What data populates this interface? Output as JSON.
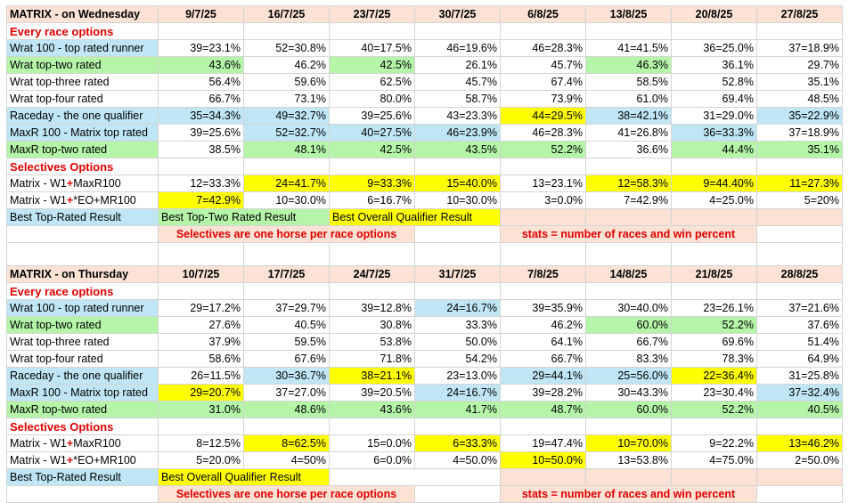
{
  "sections": [
    {
      "title": "MATRIX - on Wednesday",
      "dates": [
        "9/7/25",
        "16/7/25",
        "23/7/25",
        "30/7/25",
        "6/8/25",
        "13/8/25",
        "20/8/25",
        "27/8/25"
      ],
      "every_race_label": "Every race options",
      "rows_every": [
        {
          "label": "Wrat 100 - top rated runner",
          "label_color": "blue",
          "cells": [
            {
              "v": "39=23.1%"
            },
            {
              "v": "52=30.8%"
            },
            {
              "v": "40=17.5%"
            },
            {
              "v": "46=19.6%"
            },
            {
              "v": "46=28.3%"
            },
            {
              "v": "41=41.5%"
            },
            {
              "v": "36=25.0%"
            },
            {
              "v": "37=18.9%"
            }
          ]
        },
        {
          "label": "Wrat top-two rated",
          "label_color": "green",
          "cells": [
            {
              "v": "43.6%",
              "c": "green"
            },
            {
              "v": "46.2%"
            },
            {
              "v": "42.5%",
              "c": "green"
            },
            {
              "v": "26.1%"
            },
            {
              "v": "45.7%"
            },
            {
              "v": "46.3%",
              "c": "green"
            },
            {
              "v": "36.1%"
            },
            {
              "v": "29.7%"
            }
          ]
        },
        {
          "label": "Wrat top-three rated",
          "label_color": "",
          "cells": [
            {
              "v": "56.4%"
            },
            {
              "v": "59.6%"
            },
            {
              "v": "62.5%"
            },
            {
              "v": "45.7%"
            },
            {
              "v": "67.4%"
            },
            {
              "v": "58.5%"
            },
            {
              "v": "52.8%"
            },
            {
              "v": "35.1%"
            }
          ]
        },
        {
          "label": "Wrat top-four rated",
          "label_color": "",
          "cells": [
            {
              "v": "66.7%"
            },
            {
              "v": "73.1%"
            },
            {
              "v": "80.0%"
            },
            {
              "v": "58.7%"
            },
            {
              "v": "73.9%"
            },
            {
              "v": "61.0%"
            },
            {
              "v": "69.4%"
            },
            {
              "v": "48.5%"
            }
          ]
        },
        {
          "label": "Raceday - the one qualifier",
          "label_color": "blue",
          "cells": [
            {
              "v": "35=34.3%",
              "c": "blue"
            },
            {
              "v": "49=32.7%",
              "c": "blue"
            },
            {
              "v": "39=25.6%"
            },
            {
              "v": "43=23.3%"
            },
            {
              "v": "44=29.5%",
              "c": "yellow"
            },
            {
              "v": "38=42.1%",
              "c": "blue"
            },
            {
              "v": "31=29.0%"
            },
            {
              "v": "35=22.9%",
              "c": "blue"
            }
          ]
        },
        {
          "label": "MaxR 100 - Matrix top rated",
          "label_color": "blue",
          "cells": [
            {
              "v": "39=25.6%"
            },
            {
              "v": "52=32.7%",
              "c": "blue"
            },
            {
              "v": "40=27.5%",
              "c": "blue"
            },
            {
              "v": "46=23.9%",
              "c": "blue"
            },
            {
              "v": "46=28.3%"
            },
            {
              "v": "41=26.8%"
            },
            {
              "v": "36=33.3%",
              "c": "blue"
            },
            {
              "v": "37=18.9%"
            }
          ]
        },
        {
          "label": "MaxR top-two rated",
          "label_color": "green",
          "cells": [
            {
              "v": "38.5%"
            },
            {
              "v": "48.1%",
              "c": "green"
            },
            {
              "v": "42.5%",
              "c": "green"
            },
            {
              "v": "43.5%",
              "c": "green"
            },
            {
              "v": "52.2%",
              "c": "green"
            },
            {
              "v": "36.6%"
            },
            {
              "v": "44.4%",
              "c": "green"
            },
            {
              "v": "35.1%",
              "c": "green"
            }
          ]
        }
      ],
      "selectives_label": "Selectives Options",
      "rows_selective": [
        {
          "label_pre": "Matrix - W1",
          "label_plus": "+",
          "label_post": "MaxR100",
          "cells": [
            {
              "v": "12=33.3%"
            },
            {
              "v": "24=41.7%",
              "c": "yellow"
            },
            {
              "v": "9=33.3%",
              "c": "yellow"
            },
            {
              "v": "15=40.0%",
              "c": "yellow"
            },
            {
              "v": "13=23.1%"
            },
            {
              "v": "12=58.3%",
              "c": "yellow"
            },
            {
              "v": "9=44.40%",
              "c": "yellow"
            },
            {
              "v": "11=27.3%",
              "c": "yellow"
            }
          ]
        },
        {
          "label_pre": "Matrix - W1",
          "label_plus": "+",
          "label_post": "*EO+MR100",
          "cells": [
            {
              "v": "7=42.9%",
              "c": "yellow"
            },
            {
              "v": "10=30.0%"
            },
            {
              "v": "6=16.7%"
            },
            {
              "v": "10=30.0%"
            },
            {
              "v": "3=0.0%"
            },
            {
              "v": "7=42.9%"
            },
            {
              "v": "4=25.0%"
            },
            {
              "v": "5=20%"
            }
          ]
        }
      ],
      "legend": [
        "Best Top-Rated Result",
        "Best Top-Two Rated Result",
        "Best Overall Qualifier Result"
      ],
      "legend_colors": [
        "blue",
        "green",
        "yellow"
      ],
      "note_left": "Selectives are one horse per race options",
      "note_right": "stats = number of races and win percent"
    },
    {
      "title": "MATRIX - on Thursday",
      "dates": [
        "10/7/25",
        "17/7/25",
        "24/7/25",
        "31/7/25",
        "7/8/25",
        "14/8/25",
        "21/8/25",
        "28/8/25"
      ],
      "every_race_label": "Every race options",
      "rows_every": [
        {
          "label": "Wrat 100 - top rated runner",
          "label_color": "blue",
          "cells": [
            {
              "v": "29=17.2%"
            },
            {
              "v": "37=29.7%"
            },
            {
              "v": "39=12.8%"
            },
            {
              "v": "24=16.7%",
              "c": "blue"
            },
            {
              "v": "39=35.9%"
            },
            {
              "v": "30=40.0%"
            },
            {
              "v": "23=26.1%"
            },
            {
              "v": "37=21.6%"
            }
          ]
        },
        {
          "label": "Wrat top-two rated",
          "label_color": "green",
          "cells": [
            {
              "v": "27.6%"
            },
            {
              "v": "40.5%"
            },
            {
              "v": "30.8%"
            },
            {
              "v": "33.3%"
            },
            {
              "v": "46.2%"
            },
            {
              "v": "60.0%",
              "c": "green"
            },
            {
              "v": "52.2%",
              "c": "green"
            },
            {
              "v": "37.6%"
            }
          ]
        },
        {
          "label": "Wrat top-three rated",
          "label_color": "",
          "cells": [
            {
              "v": "37.9%"
            },
            {
              "v": "59.5%"
            },
            {
              "v": "53.8%"
            },
            {
              "v": "50.0%"
            },
            {
              "v": "64.1%"
            },
            {
              "v": "66.7%"
            },
            {
              "v": "69.6%"
            },
            {
              "v": "51.4%"
            }
          ]
        },
        {
          "label": "Wrat top-four rated",
          "label_color": "",
          "cells": [
            {
              "v": "58.6%"
            },
            {
              "v": "67.6%"
            },
            {
              "v": "71.8%"
            },
            {
              "v": "54.2%"
            },
            {
              "v": "66.7%"
            },
            {
              "v": "83.3%"
            },
            {
              "v": "78.3%"
            },
            {
              "v": "64.9%"
            }
          ]
        },
        {
          "label": "Raceday - the one qualifier",
          "label_color": "blue",
          "cells": [
            {
              "v": "26=11.5%"
            },
            {
              "v": "30=36.7%",
              "c": "blue"
            },
            {
              "v": "38=21.1%",
              "c": "yellow"
            },
            {
              "v": "23=13.0%"
            },
            {
              "v": "29=44.1%",
              "c": "blue"
            },
            {
              "v": "25=56.0%",
              "c": "blue"
            },
            {
              "v": "22=36.4%",
              "c": "yellow"
            },
            {
              "v": "31=25.8%"
            }
          ]
        },
        {
          "label": "MaxR 100 - Matrix top rated",
          "label_color": "blue",
          "cells": [
            {
              "v": "29=20.7%",
              "c": "yellow"
            },
            {
              "v": "37=27.0%"
            },
            {
              "v": "39=20.5%"
            },
            {
              "v": "24=16.7%",
              "c": "blue"
            },
            {
              "v": "39=28.2%"
            },
            {
              "v": "30=43.3%"
            },
            {
              "v": "23=30.4%"
            },
            {
              "v": "37=32.4%",
              "c": "blue"
            }
          ]
        },
        {
          "label": "MaxR top-two rated",
          "label_color": "green",
          "cells": [
            {
              "v": "31.0%",
              "c": "green"
            },
            {
              "v": "48.6%",
              "c": "green"
            },
            {
              "v": "43.6%",
              "c": "green"
            },
            {
              "v": "41.7%",
              "c": "green"
            },
            {
              "v": "48.7%",
              "c": "green"
            },
            {
              "v": "60.0%",
              "c": "green"
            },
            {
              "v": "52.2%",
              "c": "green"
            },
            {
              "v": "40.5%",
              "c": "green"
            }
          ]
        }
      ],
      "selectives_label": "Selectives Options",
      "rows_selective": [
        {
          "label_pre": "Matrix - W1",
          "label_plus": "+",
          "label_post": "MaxR100",
          "cells": [
            {
              "v": "8=12.5%"
            },
            {
              "v": "8=62.5%",
              "c": "yellow"
            },
            {
              "v": "15=0.0%"
            },
            {
              "v": "6=33.3%",
              "c": "yellow"
            },
            {
              "v": "19=47.4%"
            },
            {
              "v": "10=70.0%",
              "c": "yellow"
            },
            {
              "v": "9=22.2%"
            },
            {
              "v": "13=46.2%",
              "c": "yellow"
            }
          ]
        },
        {
          "label_pre": "Matrix - W1",
          "label_plus": "+",
          "label_post": "*EO+MR100",
          "cells": [
            {
              "v": "5=20.0%"
            },
            {
              "v": "4=50%"
            },
            {
              "v": "6=0.0%"
            },
            {
              "v": "4=50.0%"
            },
            {
              "v": "10=50.0%",
              "c": "yellow"
            },
            {
              "v": "13=53.8%"
            },
            {
              "v": "4=75.0%"
            },
            {
              "v": "2=50.0%"
            }
          ]
        }
      ],
      "legend": [
        "Best Top-Rated Result",
        "Best Overall Qualifier Result"
      ],
      "legend_colors": [
        "blue",
        "yellow"
      ],
      "note_left": "Selectives are one horse per race options",
      "note_right": "stats = number of races and win percent"
    }
  ]
}
